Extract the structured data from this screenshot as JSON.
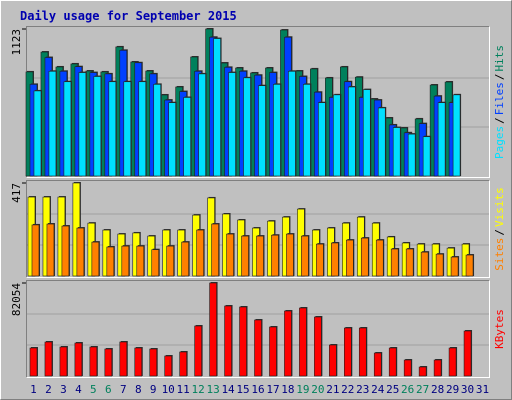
{
  "chart_data": [
    {
      "type": "bar",
      "title": "Daily usage for September 2015",
      "ylim": [
        0,
        1123
      ],
      "yticks": [
        1123
      ],
      "legend_separator": "/",
      "series": [
        {
          "name": "Hits",
          "color": "#00805c",
          "values": [
            795,
            947,
            833,
            856,
            802,
            795,
            986,
            871,
            802,
            619,
            680,
            909,
            1123,
            863,
            825,
            787,
            825,
            1115,
            802,
            818,
            749,
            833,
            755,
            588,
            443,
            367,
            436,
            695,
            718,
            null
          ]
        },
        {
          "name": "Files",
          "color": "#0040ff",
          "values": [
            700,
            905,
            800,
            835,
            790,
            780,
            960,
            865,
            780,
            580,
            645,
            800,
            1060,
            830,
            800,
            770,
            790,
            1060,
            760,
            640,
            600,
            720,
            600,
            580,
            390,
            330,
            400,
            610,
            560,
            null
          ]
        },
        {
          "name": "Pages",
          "color": "#00e0ff",
          "values": [
            650,
            800,
            720,
            790,
            760,
            720,
            720,
            720,
            700,
            560,
            600,
            780,
            1050,
            790,
            750,
            690,
            700,
            800,
            700,
            560,
            620,
            680,
            660,
            520,
            370,
            320,
            300,
            560,
            620,
            null
          ]
        }
      ]
    },
    {
      "type": "bar",
      "ylim": [
        0,
        417
      ],
      "yticks": [
        417
      ],
      "legend_separator": "/",
      "series": [
        {
          "name": "Visits",
          "color": "#ffff00",
          "values": [
            354,
            354,
            354,
            417,
            237,
            206,
            188,
            193,
            179,
            206,
            206,
            273,
            350,
            278,
            251,
            215,
            246,
            264,
            300,
            206,
            215,
            237,
            264,
            237,
            175,
            148,
            143,
            143,
            125,
            143,
            null
          ]
        },
        {
          "name": "Sites",
          "color": "#ff8000",
          "values": [
            229,
            233,
            224,
            215,
            152,
            130,
            134,
            134,
            118,
            134,
            152,
            206,
            233,
            188,
            179,
            179,
            183,
            188,
            179,
            143,
            148,
            161,
            170,
            161,
            121,
            121,
            107,
            98,
            85,
            94,
            null
          ]
        }
      ]
    },
    {
      "type": "bar",
      "ylim": [
        0,
        82054
      ],
      "yticks": [
        82054
      ],
      "categories": [
        "1",
        "2",
        "3",
        "4",
        "5",
        "6",
        "7",
        "8",
        "9",
        "10",
        "11",
        "12",
        "13",
        "14",
        "15",
        "16",
        "17",
        "18",
        "19",
        "20",
        "21",
        "22",
        "23",
        "24",
        "25",
        "26",
        "27",
        "28",
        "29",
        "30",
        "31"
      ],
      "category_colors": [
        "#000080",
        "#000080",
        "#000080",
        "#000080",
        "#00805c",
        "#00805c",
        "#000080",
        "#000080",
        "#000080",
        "#000080",
        "#000080",
        "#00805c",
        "#00805c",
        "#000080",
        "#000080",
        "#000080",
        "#000080",
        "#000080",
        "#00805c",
        "#00805c",
        "#000080",
        "#000080",
        "#000080",
        "#000080",
        "#000080",
        "#00805c",
        "#00805c",
        "#000080",
        "#000080",
        "#000080",
        "#000080"
      ],
      "series": [
        {
          "name": "KBytes",
          "color": "#ff0000",
          "values": [
            24705,
            29998,
            25587,
            29116,
            25587,
            23822,
            29998,
            24705,
            23822,
            17646,
            21175,
            44115,
            82054,
            61761,
            60879,
            49409,
            43233,
            57350,
            59996,
            52056,
            27351,
            42350,
            42350,
            20293,
            24705,
            14117,
            7941,
            14117,
            24705,
            39704,
            null
          ]
        }
      ]
    }
  ]
}
